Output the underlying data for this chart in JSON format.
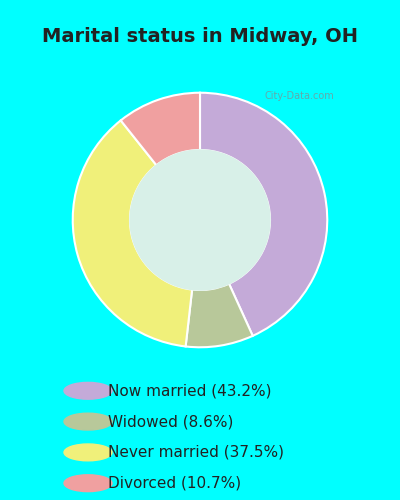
{
  "title": "Marital status in Midway, OH",
  "title_fontsize": 14,
  "title_color": "#222222",
  "background_color": "#00FFFF",
  "chart_bg": "#d8f0e8",
  "slices": [
    {
      "label": "Now married (43.2%)",
      "value": 43.2,
      "color": "#c4aad8"
    },
    {
      "label": "Widowed (8.6%)",
      "value": 8.6,
      "color": "#b8c89a"
    },
    {
      "label": "Never married (37.5%)",
      "value": 37.5,
      "color": "#f0f07a"
    },
    {
      "label": "Divorced (10.7%)",
      "value": 10.7,
      "color": "#f0a0a0"
    }
  ],
  "watermark": "City-Data.com",
  "legend_fontsize": 11,
  "legend_text_color": "#222222"
}
